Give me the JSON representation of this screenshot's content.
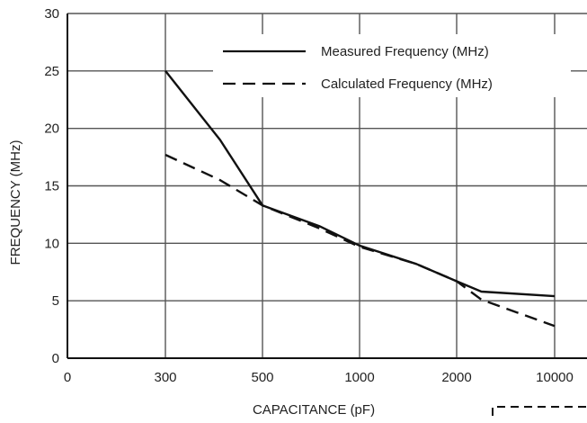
{
  "chart_data": {
    "type": "line",
    "xlabel": "CAPACITANCE (pF)",
    "ylabel": "FREQUENCY (MHz)",
    "x_ticks": [
      "0",
      "300",
      "500",
      "1000",
      "2000",
      "10000"
    ],
    "y_ticks": [
      0,
      5,
      10,
      15,
      20,
      25,
      30
    ],
    "ylim": [
      0,
      30
    ],
    "grid": true,
    "legend_position": "top-right",
    "series": [
      {
        "name": "Measured Frequency (MHz)",
        "style": "solid",
        "x": [
          300,
          400,
          500,
          750,
          1000,
          1500,
          2000,
          3000,
          10000
        ],
        "y": [
          25,
          19,
          13.3,
          11.5,
          9.8,
          8.2,
          6.7,
          5.8,
          5.4
        ]
      },
      {
        "name": "Calculated Frequency (MHz)",
        "style": "dashed",
        "x": [
          300,
          400,
          500,
          750,
          1000,
          1500,
          2000,
          3000,
          10000
        ],
        "y": [
          17.7,
          15.5,
          13.3,
          11.3,
          9.7,
          8.2,
          6.7,
          5.1,
          2.8
        ]
      }
    ]
  }
}
